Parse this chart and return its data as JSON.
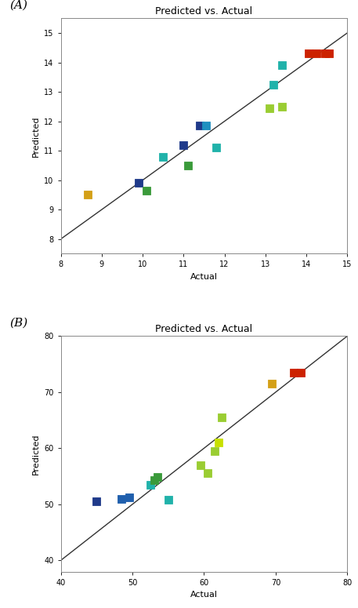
{
  "title": "Predicted vs. Actual",
  "xlabel": "Actual",
  "ylabel": "Predicted",
  "A_points": [
    {
      "actual": 8.65,
      "predicted": 9.5,
      "color": "#D4A017"
    },
    {
      "actual": 9.9,
      "predicted": 9.9,
      "color": "#1F3A8A"
    },
    {
      "actual": 10.1,
      "predicted": 9.65,
      "color": "#3A9A3A"
    },
    {
      "actual": 10.5,
      "predicted": 10.8,
      "color": "#20B2AA"
    },
    {
      "actual": 11.0,
      "predicted": 11.2,
      "color": "#1F3A8A"
    },
    {
      "actual": 11.4,
      "predicted": 11.85,
      "color": "#1F3A8A"
    },
    {
      "actual": 11.55,
      "predicted": 11.85,
      "color": "#1F90C0"
    },
    {
      "actual": 11.8,
      "predicted": 11.1,
      "color": "#20B2AA"
    },
    {
      "actual": 11.1,
      "predicted": 10.5,
      "color": "#3A9A3A"
    },
    {
      "actual": 13.1,
      "predicted": 12.45,
      "color": "#9ACD32"
    },
    {
      "actual": 13.4,
      "predicted": 12.5,
      "color": "#9ACD32"
    },
    {
      "actual": 13.2,
      "predicted": 13.25,
      "color": "#20B2AA"
    },
    {
      "actual": 13.4,
      "predicted": 13.9,
      "color": "#20B2AA"
    },
    {
      "actual": 14.05,
      "predicted": 14.3,
      "color": "#CC2200"
    },
    {
      "actual": 14.25,
      "predicted": 14.3,
      "color": "#CC2200"
    },
    {
      "actual": 14.45,
      "predicted": 14.3,
      "color": "#CC2200"
    },
    {
      "actual": 14.55,
      "predicted": 14.3,
      "color": "#CC2200"
    }
  ],
  "A_xlim": [
    8,
    15
  ],
  "A_ylim": [
    7.5,
    15.5
  ],
  "A_xticks": [
    8,
    9,
    10,
    11,
    12,
    13,
    14,
    15
  ],
  "A_yticks": [
    8,
    9,
    10,
    11,
    12,
    13,
    14,
    15
  ],
  "B_points": [
    {
      "actual": 45.0,
      "predicted": 50.5,
      "color": "#1F3A8A"
    },
    {
      "actual": 48.5,
      "predicted": 51.0,
      "color": "#1F5FAD"
    },
    {
      "actual": 49.5,
      "predicted": 51.2,
      "color": "#1F5FAD"
    },
    {
      "actual": 52.5,
      "predicted": 53.5,
      "color": "#20B2AA"
    },
    {
      "actual": 53.0,
      "predicted": 54.3,
      "color": "#3A9A3A"
    },
    {
      "actual": 53.5,
      "predicted": 54.8,
      "color": "#3A9A3A"
    },
    {
      "actual": 55.0,
      "predicted": 50.8,
      "color": "#20B2AA"
    },
    {
      "actual": 59.5,
      "predicted": 57.0,
      "color": "#9ACD32"
    },
    {
      "actual": 60.5,
      "predicted": 55.5,
      "color": "#9ACD32"
    },
    {
      "actual": 61.5,
      "predicted": 59.5,
      "color": "#9ACD32"
    },
    {
      "actual": 62.0,
      "predicted": 61.0,
      "color": "#C8E000"
    },
    {
      "actual": 62.5,
      "predicted": 65.5,
      "color": "#9ACD32"
    },
    {
      "actual": 69.5,
      "predicted": 71.5,
      "color": "#D4A017"
    },
    {
      "actual": 72.5,
      "predicted": 73.5,
      "color": "#CC2200"
    },
    {
      "actual": 73.5,
      "predicted": 73.5,
      "color": "#CC2200"
    }
  ],
  "B_xlim": [
    40,
    80
  ],
  "B_ylim": [
    38,
    80
  ],
  "B_xticks": [
    40,
    50,
    60,
    70,
    80
  ],
  "B_yticks": [
    40,
    50,
    60,
    70,
    80
  ],
  "line_color": "#333333",
  "marker_size": 7,
  "marker_style": "s",
  "label_A": "(A)",
  "label_B": "(B)",
  "background_color": "#FFFFFF",
  "title_fontsize": 9,
  "axis_label_fontsize": 8,
  "tick_fontsize": 7,
  "spine_color": "#888888"
}
